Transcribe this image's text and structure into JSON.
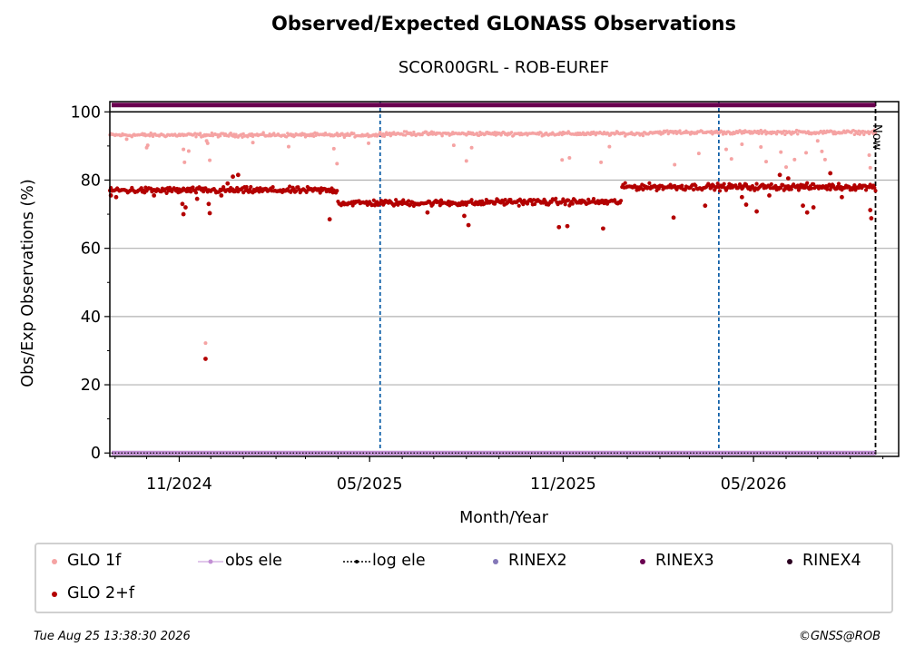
{
  "chart_data": {
    "type": "scatter",
    "title": "Observed/Expected GLONASS Observations",
    "subtitle": "SCOR00GRL - ROB-EUREF",
    "xlabel": "Month/Year",
    "ylabel": "Obs/Exp Observations (%)",
    "ylim": [
      -1,
      103
    ],
    "yticks": [
      0,
      20,
      40,
      60,
      80,
      100
    ],
    "xrange": [
      "2024-08-27",
      "2026-09-16"
    ],
    "xticks": [
      "2024-11-01",
      "2025-05-01",
      "2025-11-01",
      "2026-05-01"
    ],
    "xtick_labels": [
      "11/2024",
      "05/2025",
      "11/2025",
      "05/2026"
    ],
    "grid": "horizontal",
    "vlines": [
      "2025-05-11",
      "2026-03-29"
    ],
    "now_marker": {
      "date": "2026-08-25",
      "label": "Now"
    },
    "series": [
      {
        "name": "GLO 1f",
        "color": "#f5a3a3",
        "baseline": [
          {
            "from": "2024-08-27",
            "to": "2025-05-10",
            "value": 93.2
          },
          {
            "from": "2025-05-11",
            "to": "2026-01-20",
            "value": 93.6
          },
          {
            "from": "2026-01-21",
            "to": "2026-08-25",
            "value": 94.0
          }
        ],
        "outliers": [
          {
            "x": "2024-09-12",
            "y": 92.0
          },
          {
            "x": "2024-10-01",
            "y": 89.5
          },
          {
            "x": "2024-10-02",
            "y": 90.2
          },
          {
            "x": "2024-11-05",
            "y": 89.0
          },
          {
            "x": "2024-11-06",
            "y": 85.2
          },
          {
            "x": "2024-11-10",
            "y": 88.5
          },
          {
            "x": "2024-11-27",
            "y": 91.5
          },
          {
            "x": "2024-11-28",
            "y": 90.8
          },
          {
            "x": "2024-11-30",
            "y": 85.8
          },
          {
            "x": "2024-11-26",
            "y": 32.2
          },
          {
            "x": "2025-01-10",
            "y": 91.0
          },
          {
            "x": "2025-02-13",
            "y": 89.8
          },
          {
            "x": "2025-03-28",
            "y": 89.2
          },
          {
            "x": "2025-03-31",
            "y": 84.8
          },
          {
            "x": "2025-04-30",
            "y": 90.8
          },
          {
            "x": "2025-07-20",
            "y": 90.2
          },
          {
            "x": "2025-08-01",
            "y": 85.6
          },
          {
            "x": "2025-08-06",
            "y": 89.5
          },
          {
            "x": "2025-10-31",
            "y": 85.9
          },
          {
            "x": "2025-11-07",
            "y": 86.5
          },
          {
            "x": "2025-12-07",
            "y": 85.2
          },
          {
            "x": "2025-12-15",
            "y": 89.8
          },
          {
            "x": "2026-02-15",
            "y": 84.5
          },
          {
            "x": "2026-03-10",
            "y": 87.8
          },
          {
            "x": "2026-04-05",
            "y": 89.0
          },
          {
            "x": "2026-04-10",
            "y": 86.2
          },
          {
            "x": "2026-04-20",
            "y": 90.5
          },
          {
            "x": "2026-05-08",
            "y": 89.7
          },
          {
            "x": "2026-05-13",
            "y": 85.4
          },
          {
            "x": "2026-05-27",
            "y": 88.2
          },
          {
            "x": "2026-06-01",
            "y": 83.8
          },
          {
            "x": "2026-06-09",
            "y": 86.0
          },
          {
            "x": "2026-06-20",
            "y": 88.0
          },
          {
            "x": "2026-07-01",
            "y": 91.5
          },
          {
            "x": "2026-07-05",
            "y": 88.4
          },
          {
            "x": "2026-07-08",
            "y": 86.0
          },
          {
            "x": "2026-08-19",
            "y": 87.3
          },
          {
            "x": "2026-08-20",
            "y": 83.6
          }
        ]
      },
      {
        "name": "GLO 2+f",
        "color": "#b30000",
        "baseline": [
          {
            "from": "2024-08-27",
            "to": "2025-03-31",
            "value": 77.0
          },
          {
            "from": "2025-04-01",
            "to": "2025-08-20",
            "value": 73.3
          },
          {
            "from": "2025-08-21",
            "to": "2025-12-26",
            "value": 73.6
          },
          {
            "from": "2025-12-27",
            "to": "2026-08-25",
            "value": 78.0
          }
        ],
        "outliers": [
          {
            "x": "2024-08-28",
            "y": 75.5
          },
          {
            "x": "2024-09-02",
            "y": 75.0
          },
          {
            "x": "2024-10-08",
            "y": 75.5
          },
          {
            "x": "2024-11-04",
            "y": 73.0
          },
          {
            "x": "2024-11-05",
            "y": 70.0
          },
          {
            "x": "2024-11-07",
            "y": 72.0
          },
          {
            "x": "2024-11-18",
            "y": 74.5
          },
          {
            "x": "2024-11-26",
            "y": 27.6
          },
          {
            "x": "2024-11-29",
            "y": 73.0
          },
          {
            "x": "2024-11-30",
            "y": 70.3
          },
          {
            "x": "2024-12-11",
            "y": 75.5
          },
          {
            "x": "2024-12-17",
            "y": 79.0
          },
          {
            "x": "2024-12-22",
            "y": 81.0
          },
          {
            "x": "2024-12-27",
            "y": 81.5
          },
          {
            "x": "2025-03-24",
            "y": 68.5
          },
          {
            "x": "2025-06-25",
            "y": 70.5
          },
          {
            "x": "2025-07-30",
            "y": 69.5
          },
          {
            "x": "2025-08-03",
            "y": 66.8
          },
          {
            "x": "2025-10-28",
            "y": 66.2
          },
          {
            "x": "2025-11-05",
            "y": 66.5
          },
          {
            "x": "2025-12-09",
            "y": 65.8
          },
          {
            "x": "2026-02-14",
            "y": 69.0
          },
          {
            "x": "2026-03-16",
            "y": 72.5
          },
          {
            "x": "2026-04-20",
            "y": 75.0
          },
          {
            "x": "2026-04-24",
            "y": 72.8
          },
          {
            "x": "2026-05-04",
            "y": 70.8
          },
          {
            "x": "2026-05-16",
            "y": 75.5
          },
          {
            "x": "2026-05-26",
            "y": 81.5
          },
          {
            "x": "2026-06-03",
            "y": 80.5
          },
          {
            "x": "2026-06-17",
            "y": 72.5
          },
          {
            "x": "2026-06-21",
            "y": 70.5
          },
          {
            "x": "2026-06-27",
            "y": 72.0
          },
          {
            "x": "2026-07-13",
            "y": 82.0
          },
          {
            "x": "2026-07-24",
            "y": 75.0
          },
          {
            "x": "2026-08-20",
            "y": 71.2
          },
          {
            "x": "2026-08-21",
            "y": 68.8
          }
        ]
      },
      {
        "name": "obs ele",
        "color": "#c28fd4",
        "value": 0
      },
      {
        "name": "log ele",
        "color": "#000000",
        "value": 0
      },
      {
        "name": "RINEX2",
        "color": "#8478b8"
      },
      {
        "name": "RINEX3",
        "color": "#6a0050",
        "value": 102
      },
      {
        "name": "RINEX4",
        "color": "#2a0020"
      }
    ]
  },
  "footer": {
    "timestamp": "Tue Aug 25 13:38:30 2026",
    "credit": "©GNSS@ROB"
  }
}
